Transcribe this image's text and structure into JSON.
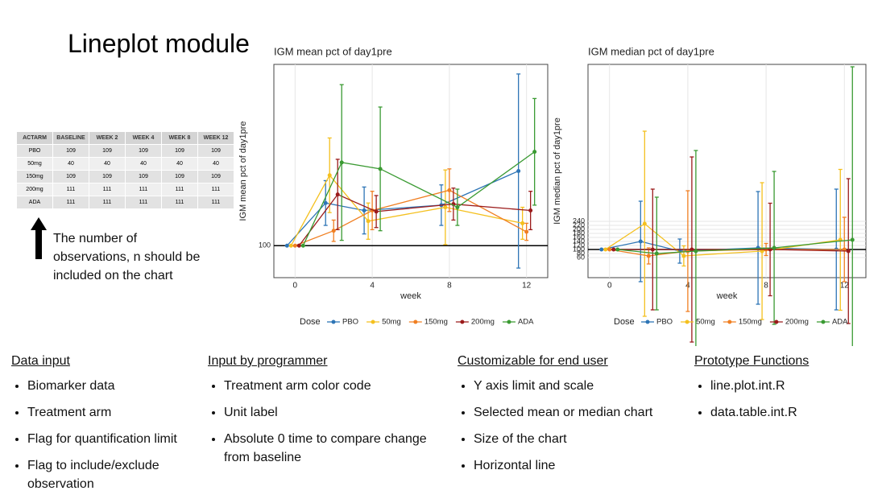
{
  "title": "Lineplot module",
  "table": {
    "header": [
      "ACTARM",
      "BASELINE",
      "WEEK 2",
      "WEEK 4",
      "WEEK 8",
      "WEEK 12"
    ],
    "rows": [
      [
        "PBO",
        109,
        109,
        109,
        109,
        109
      ],
      [
        "50mg",
        40,
        40,
        40,
        40,
        40
      ],
      [
        "150mg",
        109,
        109,
        109,
        109,
        109
      ],
      [
        "200mg",
        111,
        111,
        111,
        111,
        111
      ],
      [
        "ADA",
        111,
        111,
        111,
        111,
        111
      ]
    ]
  },
  "note": "The number of observations, n should be included on the chart",
  "chart_data": [
    {
      "type": "line",
      "title": "IGM mean pct of day1pre",
      "x_label": "week",
      "y_label": "IGM mean pct of day1pre",
      "legend_title": "Dose",
      "x": [
        0,
        2,
        4,
        8,
        12
      ],
      "xlim": [
        -1.1,
        13.1
      ],
      "xticks": [
        0,
        4,
        8,
        12
      ],
      "ylim": [
        70,
        270
      ],
      "yticks": [
        100
      ],
      "hline": 100,
      "grid": true,
      "series": [
        {
          "name": "PBO",
          "color": "#2e75b6",
          "values": [
            100,
            140,
            133,
            138,
            170
          ],
          "errors": [
            0,
            21,
            22,
            19,
            91
          ]
        },
        {
          "name": "50mg",
          "color": "#f4c01e",
          "values": [
            100,
            166,
            123,
            136,
            121
          ],
          "errors": [
            0,
            35,
            17,
            35,
            15
          ]
        },
        {
          "name": "150mg",
          "color": "#f07f22",
          "values": [
            100,
            114,
            133,
            152,
            113
          ],
          "errors": [
            0,
            10,
            18,
            20,
            8
          ]
        },
        {
          "name": "200mg",
          "color": "#9b1b1b",
          "values": [
            100,
            148,
            132,
            139,
            133
          ],
          "errors": [
            0,
            33,
            15,
            15,
            18
          ]
        },
        {
          "name": "ADA",
          "color": "#3a9a32",
          "values": [
            100,
            178,
            172,
            136,
            188
          ],
          "errors": [
            0,
            73,
            58,
            17,
            50
          ]
        }
      ]
    },
    {
      "type": "line",
      "title": "IGM median pct of day1pre",
      "x_label": "week",
      "y_label": "IGM median pct of day1pre",
      "legend_title": "Dose",
      "x": [
        0,
        2,
        4,
        8,
        12
      ],
      "xlim": [
        -1.1,
        13.1
      ],
      "xticks": [
        0,
        4,
        8,
        12
      ],
      "ylim": [
        -40,
        1020
      ],
      "yticks": [
        60,
        80,
        100,
        120,
        140,
        160,
        180,
        200,
        220,
        240
      ],
      "hline": 100,
      "grid": true,
      "series": [
        {
          "name": "PBO",
          "color": "#2e75b6",
          "values": [
            100,
            140,
            92,
            108,
            100
          ],
          "errors": [
            0,
            200,
            60,
            280,
            300
          ]
        },
        {
          "name": "50mg",
          "color": "#f4c01e",
          "values": [
            100,
            228,
            68,
            92,
            148
          ],
          "errors": [
            0,
            460,
            50,
            340,
            350
          ]
        },
        {
          "name": "150mg",
          "color": "#f07f22",
          "values": [
            100,
            68,
            92,
            100,
            100
          ],
          "errors": [
            0,
            40,
            300,
            30,
            160
          ]
        },
        {
          "name": "200mg",
          "color": "#9b1b1b",
          "values": [
            100,
            100,
            100,
            100,
            92
          ],
          "errors": [
            0,
            300,
            460,
            230,
            360
          ]
        },
        {
          "name": "ADA",
          "color": "#3a9a32",
          "values": [
            100,
            80,
            92,
            108,
            148
          ],
          "errors": [
            0,
            280,
            500,
            380,
            860
          ]
        }
      ]
    }
  ],
  "sections": [
    {
      "heading": "Data input",
      "items": [
        "Biomarker data",
        "Treatment arm",
        "Flag for quantification limit",
        "Flag to include/exclude observation"
      ]
    },
    {
      "heading": "Input by programmer",
      "items": [
        "Treatment arm color code",
        "Unit label",
        "Absolute 0 time to compare change from baseline"
      ]
    },
    {
      "heading": "Customizable for end user",
      "items": [
        "Y axis limit and scale",
        "Selected mean or median chart",
        "Size of the chart",
        "Horizontal line"
      ]
    },
    {
      "heading": "Prototype Functions",
      "items": [
        "line.plot.int.R",
        "data.table.int.R"
      ]
    }
  ]
}
